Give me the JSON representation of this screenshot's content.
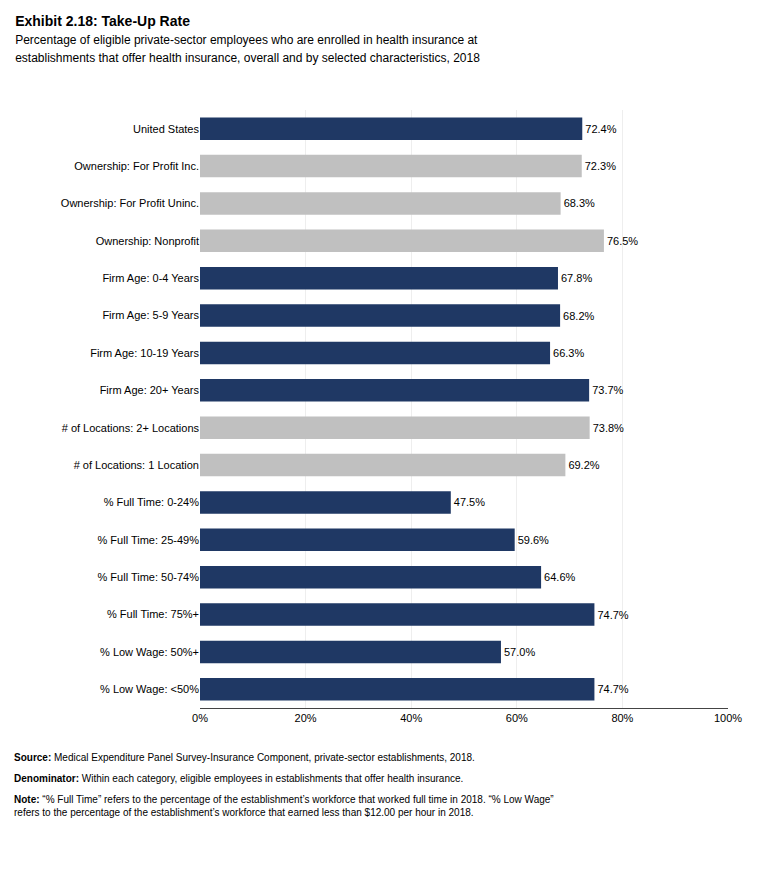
{
  "chart_data": {
    "type": "bar",
    "orientation": "horizontal",
    "title": "Exhibit 2.18: Take-Up Rate",
    "subtitle": "Percentage of eligible private-sector employees who are enrolled in health insurance at\nestablishments that offer health insurance, overall and by selected characteristics, 2018",
    "categories": [
      "United States",
      "Ownership: For Profit Inc.",
      "Ownership: For Profit Uninc.",
      "Ownership: Nonprofit",
      "Firm Age: 0-4 Years",
      "Firm Age: 5-9 Years",
      "Firm Age: 10-19 Years",
      "Firm Age: 20+ Years",
      "# of Locations: 2+ Locations",
      "# of Locations: 1 Location",
      "% Full Time: 0-24%",
      "% Full Time: 25-49%",
      "% Full Time: 50-74%",
      "% Full Time: 75%+",
      "% Low Wage: 50%+",
      "% Low Wage: <50%"
    ],
    "values": [
      72.4,
      72.3,
      68.3,
      76.5,
      67.8,
      68.2,
      66.3,
      73.7,
      73.8,
      69.2,
      47.5,
      59.6,
      64.6,
      74.7,
      57.0,
      74.7
    ],
    "value_labels": [
      "72.4%",
      "72.3%",
      "68.3%",
      "76.5%",
      "67.8%",
      "68.2%",
      "66.3%",
      "73.7%",
      "73.8%",
      "69.2%",
      "47.5%",
      "59.6%",
      "64.6%",
      "74.7%",
      "57.0%",
      "74.7%"
    ],
    "data_labels": true,
    "colors": [
      "#1F3864",
      "#C0C0C0",
      "#C0C0C0",
      "#C0C0C0",
      "#1F3864",
      "#1F3864",
      "#1F3864",
      "#1F3864",
      "#C0C0C0",
      "#C0C0C0",
      "#1F3864",
      "#1F3864",
      "#1F3864",
      "#1F3864",
      "#1F3864",
      "#1F3864"
    ],
    "xlim": [
      0,
      100
    ],
    "xticks": [
      {
        "value": 0,
        "label": "0%"
      },
      {
        "value": 20,
        "label": "20%"
      },
      {
        "value": 40,
        "label": "40%"
      },
      {
        "value": 60,
        "label": "60%"
      },
      {
        "value": 80,
        "label": "80%"
      },
      {
        "value": 100,
        "label": "100%"
      }
    ],
    "grid": true,
    "annotations": [
      {
        "label": "Source:",
        "text": "Medical Expenditure Panel Survey-Insurance Component, private-sector establishments, 2018."
      },
      {
        "label": "Denominator:",
        "text": "Within each category, eligible employees in establishments that offer health insurance."
      },
      {
        "label": "Note:",
        "text": "“% Full Time” refers to the percentage of the establishment’s workforce that worked full time in 2018. “% Low Wage”\nrefers to the percentage of the establishment’s workforce that earned less than $12.00 per hour in 2018."
      }
    ]
  }
}
